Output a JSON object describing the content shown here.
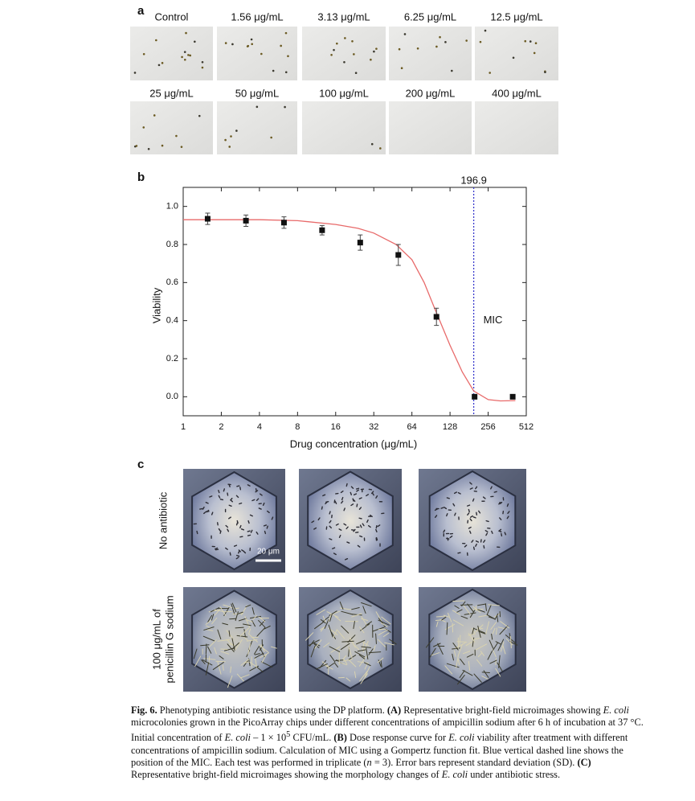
{
  "panel_a": {
    "label": "a",
    "images": [
      "Control",
      "1.56 μg/mL",
      "3.13 μg/mL",
      "6.25 μg/mL",
      "12.5 μg/mL",
      "25 μg/mL",
      "50 μg/mL",
      "100 μg/mL",
      "200 μg/mL",
      "400 μg/mL"
    ]
  },
  "chart_data": {
    "type": "line",
    "panel_label": "b",
    "xlabel": "Drug concentration (μg/mL)",
    "ylabel": "Viability",
    "xscale": "log2",
    "xlim": [
      1,
      512
    ],
    "xticks": [
      1,
      2,
      4,
      8,
      16,
      32,
      64,
      128,
      256,
      512
    ],
    "ylim": [
      -0.1,
      1.1
    ],
    "yticks": [
      {
        "value": 0,
        "label": "0.0"
      },
      0.2,
      0.4,
      0.6,
      0.8,
      {
        "value": 1,
        "label": "1.0"
      }
    ],
    "x": [
      1.56,
      3.13,
      6.25,
      12.5,
      25,
      50,
      100,
      200,
      400
    ],
    "series": [
      {
        "color": "#111111",
        "marker": "square",
        "values": [
          0.935,
          0.925,
          0.915,
          0.875,
          0.81,
          0.745,
          0.42,
          0.0,
          0.0
        ],
        "errors": [
          0.03,
          0.03,
          0.03,
          0.025,
          0.04,
          0.055,
          0.045,
          0,
          0
        ]
      }
    ],
    "fit": {
      "color": "#e86a6a",
      "x": [
        1,
        2,
        4,
        8,
        16,
        24,
        32,
        48,
        64,
        80,
        96,
        128,
        160,
        196.9,
        256,
        320,
        420
      ],
      "values": [
        0.93,
        0.93,
        0.93,
        0.925,
        0.905,
        0.885,
        0.86,
        0.8,
        0.72,
        0.6,
        0.47,
        0.27,
        0.13,
        0.03,
        -0.015,
        -0.022,
        -0.02
      ]
    },
    "mic_line": 196.9,
    "mic_color": "#3a3acc",
    "annotation": "MIC"
  },
  "panel_c": {
    "label": "c",
    "rows": [
      {
        "lines": [
          "No antibiotic"
        ]
      },
      {
        "lines": [
          "100 μg/mL of",
          "penicillin G sodium"
        ]
      }
    ],
    "scale_bar": "20 μm"
  },
  "caption": {
    "label": "Fig. 6.",
    "parts": [
      " Phenotyping antibiotic resistance using the DP platform. ",
      "(A)",
      " Representative bright-field microimages showing ",
      "E. coli",
      " microcolonies grown in the PicoArray chips under different concentrations of ampicillin sodium after 6 h of incubation at 37 °C. Initial concentration of ",
      "E. coli",
      " – 1 × 10",
      "5",
      " CFU/mL. ",
      "(B)",
      " Dose response curve for ",
      "E. coli",
      " viability after treatment with different concentrations of ampicillin sodium. Calculation of MIC using a Gompertz function fit. Blue vertical dashed line shows the position of the MIC. Each test was performed in triplicate (",
      "n",
      " = 3). Error bars represent standard deviation (SD). ",
      "(C)",
      " Representative bright-field microimages showing the morphology changes of ",
      "E. coli",
      " under antibiotic stress."
    ]
  }
}
